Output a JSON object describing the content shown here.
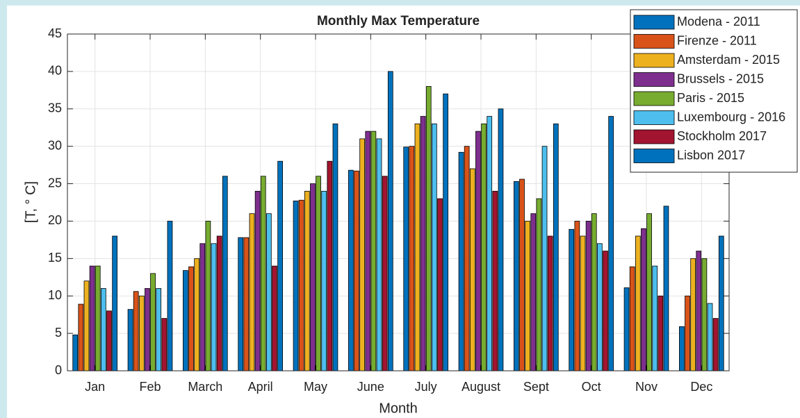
{
  "chart_data": {
    "type": "bar",
    "title": "Monthly Max Temperature",
    "x_label": "Month",
    "y_label": "[T, ° C]",
    "categories": [
      "Jan",
      "Feb",
      "March",
      "April",
      "May",
      "June",
      "July",
      "August",
      "Sept",
      "Oct",
      "Nov",
      "Dec"
    ],
    "series": [
      {
        "name": "Modena - 2011",
        "color": "#0072bd",
        "values": [
          4.8,
          8.2,
          13.4,
          17.8,
          22.7,
          26.8,
          29.9,
          29.2,
          25.3,
          18.9,
          11.1,
          5.9
        ]
      },
      {
        "name": "Firenze - 2011",
        "color": "#d95319",
        "values": [
          8.9,
          10.6,
          13.9,
          17.8,
          22.8,
          26.7,
          30,
          30,
          25.6,
          20,
          13.9,
          10
        ]
      },
      {
        "name": "Amsterdam - 2015",
        "color": "#edb120",
        "values": [
          12,
          10,
          15,
          21,
          24,
          31,
          33,
          27,
          20,
          18,
          18,
          15
        ]
      },
      {
        "name": "Brussels - 2015",
        "color": "#7e2f8e",
        "values": [
          14,
          11,
          17,
          24,
          25,
          32,
          34,
          32,
          21,
          20,
          19,
          16
        ]
      },
      {
        "name": "Paris - 2015",
        "color": "#77ac30",
        "values": [
          14,
          13,
          20,
          26,
          26,
          32,
          38,
          33,
          23,
          21,
          21,
          15
        ]
      },
      {
        "name": "Luxembourg - 2016",
        "color": "#4dbeee",
        "values": [
          11,
          11,
          17,
          21,
          24,
          31,
          33,
          34,
          30,
          17,
          14,
          9
        ]
      },
      {
        "name": "Stockholm 2017",
        "color": "#a2142f",
        "values": [
          8,
          7,
          18,
          14,
          28,
          26,
          23,
          24,
          18,
          16,
          10,
          7
        ]
      },
      {
        "name": "Lisbon 2017",
        "color": "#0072bd",
        "values": [
          18,
          20,
          26,
          28,
          33,
          40,
          37,
          35,
          33,
          34,
          22,
          18
        ]
      }
    ],
    "ylim": [
      0,
      45
    ],
    "yticks": [
      0,
      5,
      10,
      15,
      20,
      25,
      30,
      35,
      40,
      45
    ],
    "grid": true,
    "legend": "northeast"
  }
}
